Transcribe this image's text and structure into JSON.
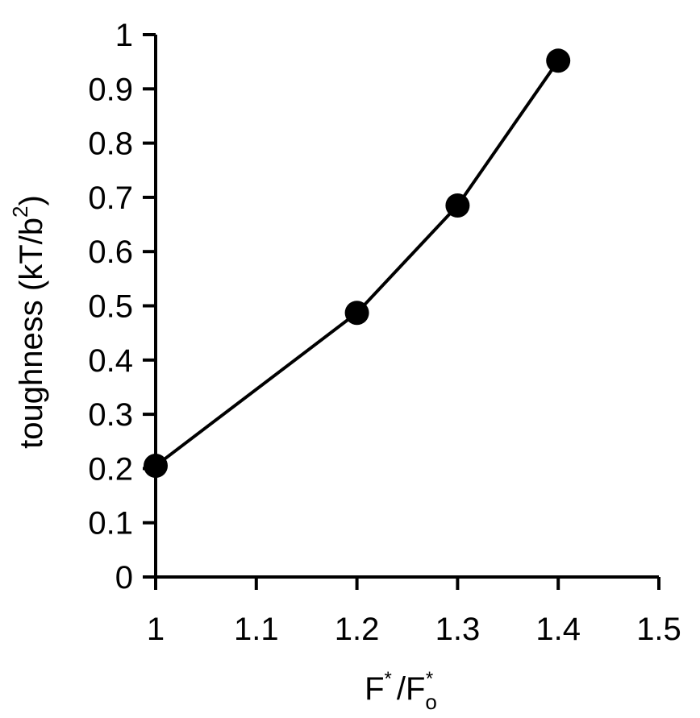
{
  "chart_data": {
    "type": "line",
    "title": "",
    "xlabel": {
      "main": "F",
      "sup": "*",
      "sep": "/F",
      "sub": "o",
      "sup2": "*"
    },
    "ylabel": {
      "main": "toughness (kT/b",
      "sup": "2",
      "end": ")"
    },
    "xlim": [
      1,
      1.5
    ],
    "ylim": [
      0,
      1
    ],
    "xticks": [
      1,
      1.1,
      1.2,
      1.3,
      1.4,
      1.5
    ],
    "xtick_labels": [
      "1",
      "1.1",
      "1.2",
      "1.3",
      "1.4",
      "1.5"
    ],
    "yticks": [
      0,
      0.1,
      0.2,
      0.3,
      0.4,
      0.5,
      0.6,
      0.7,
      0.8,
      0.9,
      1
    ],
    "ytick_labels": [
      "0",
      "0.1",
      "0.2",
      "0.3",
      "0.4",
      "0.5",
      "0.6",
      "0.7",
      "0.8",
      "0.9",
      "1"
    ],
    "grid": false,
    "series": [
      {
        "x": [
          1,
          1.2,
          1.3,
          1.4
        ],
        "values": [
          0.205,
          0.487,
          0.685,
          0.952
        ],
        "color": "#000000",
        "marker": "circle"
      }
    ]
  }
}
